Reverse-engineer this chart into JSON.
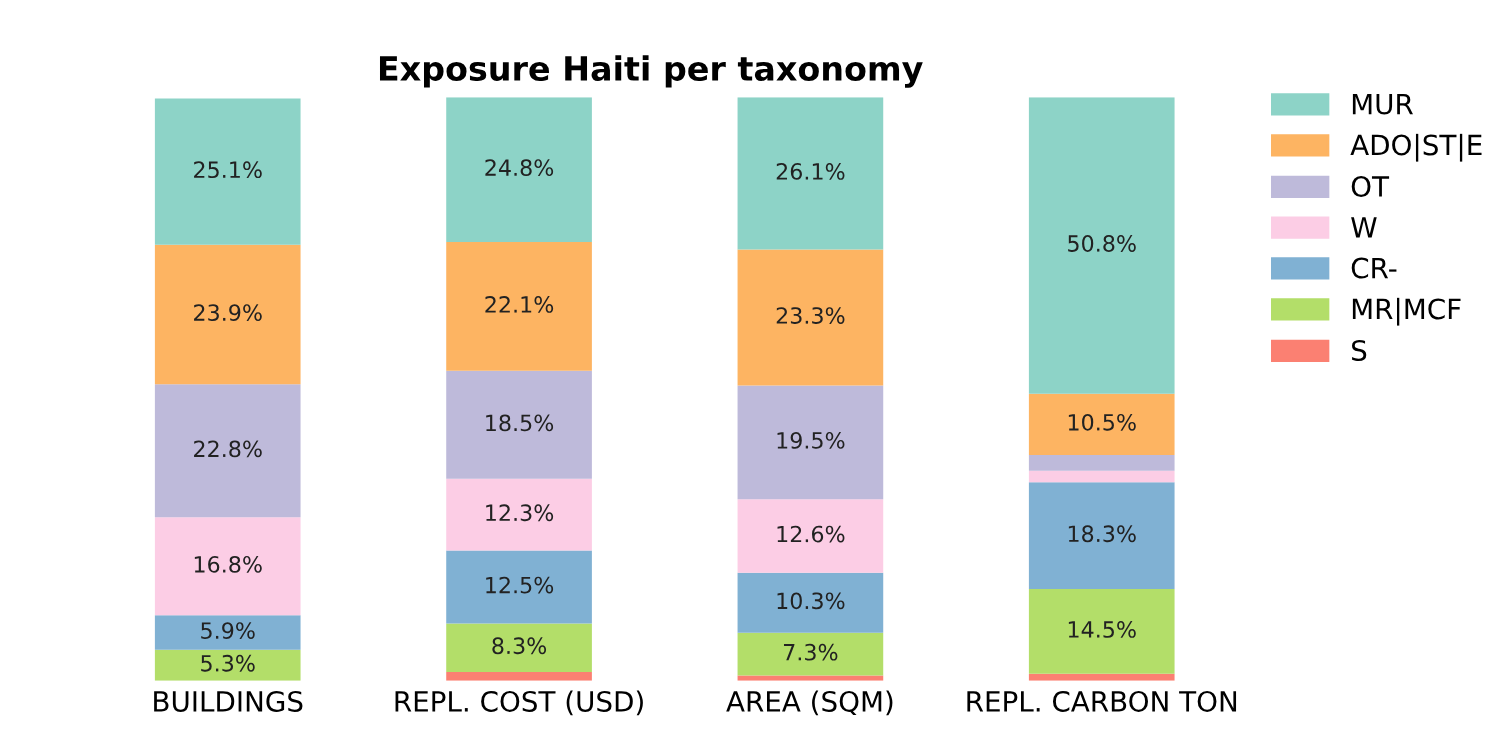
{
  "chart_data": {
    "type": "bar",
    "stacked": true,
    "title": "Exposure Haiti per taxonomy",
    "categories": [
      "BUILDINGS",
      "REPL. COST (USD)",
      "AREA (SQM)",
      "REPL. CARBON TON"
    ],
    "series": [
      {
        "name": "S",
        "color": "#fb8072",
        "values": [
          null,
          1.5,
          0.9,
          1.2
        ],
        "value_labels": [
          null,
          null,
          null,
          null
        ]
      },
      {
        "name": "MR|MCF",
        "color": "#b3de69",
        "values": [
          5.3,
          8.3,
          7.3,
          14.5
        ],
        "value_labels": [
          "5.3%",
          "8.3%",
          "7.3%",
          "14.5%"
        ]
      },
      {
        "name": "CR-",
        "color": "#80b1d3",
        "values": [
          5.9,
          12.5,
          10.3,
          18.3
        ],
        "value_labels": [
          "5.9%",
          "12.5%",
          "10.3%",
          "18.3%"
        ]
      },
      {
        "name": "W",
        "color": "#fccde5",
        "values": [
          16.8,
          12.3,
          12.6,
          2.0
        ],
        "value_labels": [
          "16.8%",
          "12.3%",
          "12.6%",
          null
        ]
      },
      {
        "name": "OT",
        "color": "#bebada",
        "values": [
          22.8,
          18.5,
          19.5,
          2.7
        ],
        "value_labels": [
          "22.8%",
          "18.5%",
          "19.5%",
          null
        ]
      },
      {
        "name": "ADO|ST|E",
        "color": "#fdb462",
        "values": [
          23.9,
          22.1,
          23.3,
          10.5
        ],
        "value_labels": [
          "23.9%",
          "22.1%",
          "23.3%",
          "10.5%"
        ]
      },
      {
        "name": "MUR",
        "color": "#8dd3c7",
        "values": [
          25.1,
          24.8,
          26.1,
          50.8
        ],
        "value_labels": [
          "25.1%",
          "24.8%",
          "26.1%",
          "50.8%"
        ]
      }
    ],
    "legend": "top right",
    "tick_labels": "x",
    "grid": false
  }
}
